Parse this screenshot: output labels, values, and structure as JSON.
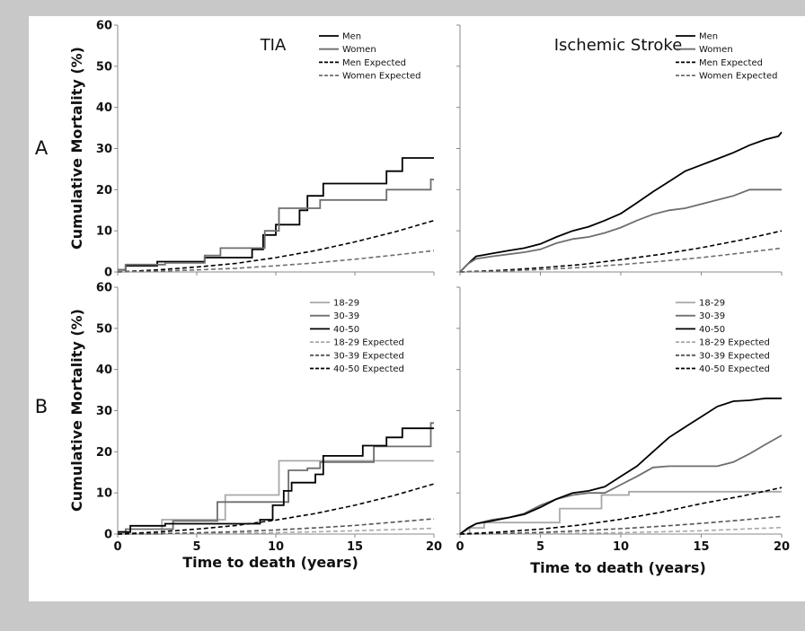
{
  "figure": {
    "background": "#c8c8c8",
    "ylabel": "Cumulative Mortality (%)",
    "xlabel": "Time to death (years)",
    "row_labels": [
      "A",
      "B"
    ],
    "column_titles": [
      "TIA",
      "Ischemic Stroke"
    ]
  },
  "chart_data": [
    {
      "type": "line",
      "row": "A",
      "title": "TIA",
      "xlabel": "",
      "ylabel": "Cumulative Mortality (%)",
      "xlim": [
        0,
        20
      ],
      "ylim": [
        0,
        60
      ],
      "xticks": [
        0,
        5,
        10,
        15,
        20
      ],
      "yticks": [
        0,
        10,
        20,
        30,
        40,
        50,
        60
      ],
      "legend_position": "top-right",
      "series": [
        {
          "name": "Men",
          "color": "#000000",
          "dash": "solid",
          "step": true,
          "x": [
            0,
            0.5,
            2.5,
            5.5,
            8.5,
            9.2,
            10.0,
            11.5,
            12.0,
            13.0,
            13.5,
            17.0,
            18.0,
            20.0
          ],
          "y": [
            0.5,
            1.5,
            2.5,
            3.5,
            5.5,
            9.0,
            11.5,
            15.0,
            18.5,
            21.5,
            21.5,
            24.5,
            27.7,
            27.7
          ]
        },
        {
          "name": "Women",
          "color": "#6e6e6e",
          "dash": "solid",
          "step": true,
          "x": [
            0,
            0.5,
            3.0,
            5.5,
            6.5,
            9.3,
            10.2,
            11.8,
            12.8,
            13.6,
            17.0,
            19.8,
            20.0
          ],
          "y": [
            0.5,
            1.8,
            2.2,
            4.0,
            5.8,
            10.0,
            15.5,
            15.5,
            17.5,
            17.5,
            20.0,
            22.5,
            22.5
          ]
        },
        {
          "name": "Men Expected",
          "color": "#000000",
          "dash": "dashed",
          "step": false,
          "x": [
            0,
            2.5,
            5,
            7.5,
            10,
            12.5,
            15,
            17.5,
            20
          ],
          "y": [
            0,
            0.5,
            1.2,
            2.1,
            3.5,
            5.2,
            7.3,
            9.7,
            12.5
          ]
        },
        {
          "name": "Women Expected",
          "color": "#6e6e6e",
          "dash": "dashed",
          "step": false,
          "x": [
            0,
            2.5,
            5,
            7.5,
            10,
            12.5,
            15,
            17.5,
            20
          ],
          "y": [
            0,
            0.2,
            0.5,
            0.9,
            1.5,
            2.2,
            3.1,
            4.1,
            5.2
          ]
        }
      ]
    },
    {
      "type": "line",
      "row": "A",
      "title": "Ischemic Stroke",
      "xlabel": "",
      "ylabel": "",
      "xlim": [
        0,
        20
      ],
      "ylim": [
        0,
        60
      ],
      "xticks": [
        0,
        5,
        10,
        15,
        20
      ],
      "yticks": [
        0,
        10,
        20,
        30,
        40,
        50,
        60
      ],
      "legend_position": "top-right",
      "series": [
        {
          "name": "Men",
          "color": "#000000",
          "dash": "solid",
          "step": false,
          "x": [
            0,
            0.5,
            1,
            2,
            3,
            4,
            5,
            6,
            7,
            8,
            9,
            10,
            11,
            12,
            13,
            14,
            15,
            16,
            17,
            18,
            19,
            19.8,
            20
          ],
          "y": [
            0,
            2.0,
            3.8,
            4.5,
            5.2,
            5.8,
            6.8,
            8.5,
            10.0,
            11.0,
            12.5,
            14.2,
            16.8,
            19.5,
            22.0,
            24.5,
            26.0,
            27.5,
            29.0,
            30.8,
            32.2,
            33.0,
            34.0
          ]
        },
        {
          "name": "Women",
          "color": "#6e6e6e",
          "dash": "solid",
          "step": false,
          "x": [
            0,
            0.5,
            1,
            2,
            3,
            4,
            5,
            6,
            7,
            8,
            9,
            10,
            11,
            12,
            13,
            14,
            15,
            16,
            17,
            18,
            19,
            20
          ],
          "y": [
            0,
            2.0,
            3.2,
            3.8,
            4.3,
            4.8,
            5.5,
            7.0,
            8.0,
            8.5,
            9.5,
            10.8,
            12.5,
            14.0,
            15.0,
            15.5,
            16.5,
            17.5,
            18.5,
            20.0,
            20.0,
            20.0
          ]
        },
        {
          "name": "Men Expected",
          "color": "#000000",
          "dash": "dashed",
          "step": false,
          "x": [
            0,
            2.5,
            5,
            7.5,
            10,
            12.5,
            15,
            17.5,
            20
          ],
          "y": [
            0,
            0.4,
            1.0,
            1.8,
            3.0,
            4.3,
            5.9,
            7.8,
            10.0
          ]
        },
        {
          "name": "Women Expected",
          "color": "#6e6e6e",
          "dash": "dashed",
          "step": false,
          "x": [
            0,
            2.5,
            5,
            7.5,
            10,
            12.5,
            15,
            17.5,
            20
          ],
          "y": [
            0,
            0.2,
            0.6,
            1.1,
            1.8,
            2.6,
            3.5,
            4.6,
            5.8
          ]
        }
      ]
    },
    {
      "type": "line",
      "row": "B",
      "title": "",
      "xlabel": "Time to death (years)",
      "ylabel": "Cumulative Mortality (%)",
      "xlim": [
        0,
        20
      ],
      "ylim": [
        0,
        60
      ],
      "xticks": [
        0,
        5,
        10,
        15,
        20
      ],
      "yticks": [
        0,
        10,
        20,
        30,
        40,
        50,
        60
      ],
      "legend_position": "top-right",
      "series": [
        {
          "name": "18-29",
          "color": "#a8a8a8",
          "dash": "solid",
          "step": true,
          "x": [
            0,
            2.8,
            6.8,
            10.2,
            20.0
          ],
          "y": [
            0,
            3.5,
            9.5,
            17.8,
            17.8
          ]
        },
        {
          "name": "30-39",
          "color": "#6e6e6e",
          "dash": "solid",
          "step": true,
          "x": [
            0,
            0.5,
            3.5,
            6.3,
            9.5,
            10.8,
            12.0,
            12.8,
            14.0,
            16.2,
            19.8,
            20.0
          ],
          "y": [
            0.5,
            1.2,
            3.2,
            7.8,
            7.8,
            15.5,
            16.0,
            17.5,
            17.5,
            21.3,
            27.0,
            27.0
          ]
        },
        {
          "name": "40-50",
          "color": "#000000",
          "dash": "solid",
          "step": true,
          "x": [
            0,
            0.8,
            3.0,
            9.0,
            9.8,
            10.5,
            11.0,
            12.5,
            13.0,
            15.5,
            17.0,
            18.0,
            20.0
          ],
          "y": [
            0.5,
            2.0,
            2.5,
            3.5,
            7.0,
            10.5,
            12.5,
            14.5,
            19.0,
            21.5,
            23.5,
            25.7,
            25.7
          ]
        },
        {
          "name": "18-29 Expected",
          "color": "#a8a8a8",
          "dash": "dashed",
          "step": false,
          "x": [
            0,
            2.5,
            5,
            7.5,
            10,
            12.5,
            15,
            17.5,
            20
          ],
          "y": [
            0,
            0.05,
            0.1,
            0.2,
            0.35,
            0.55,
            0.8,
            1.1,
            1.4
          ]
        },
        {
          "name": "30-39 Expected",
          "color": "#555555",
          "dash": "dashed",
          "step": false,
          "x": [
            0,
            2.5,
            5,
            7.5,
            10,
            12.5,
            15,
            17.5,
            20
          ],
          "y": [
            0,
            0.1,
            0.3,
            0.6,
            1.0,
            1.5,
            2.1,
            2.9,
            3.7
          ]
        },
        {
          "name": "40-50 Expected",
          "color": "#000000",
          "dash": "dashed",
          "step": false,
          "x": [
            0,
            2.5,
            5,
            7.5,
            10,
            12.5,
            15,
            17.5,
            20
          ],
          "y": [
            0,
            0.5,
            1.2,
            2.1,
            3.4,
            5.0,
            7.0,
            9.4,
            12.2
          ]
        }
      ]
    },
    {
      "type": "line",
      "row": "B",
      "title": "",
      "xlabel": "Time to death (years)",
      "ylabel": "",
      "xlim": [
        0,
        20
      ],
      "ylim": [
        0,
        60
      ],
      "xticks": [
        0,
        5,
        10,
        15,
        20
      ],
      "yticks": [
        0,
        10,
        20,
        30,
        40,
        50,
        60
      ],
      "legend_position": "top-right",
      "series": [
        {
          "name": "18-29",
          "color": "#a8a8a8",
          "dash": "solid",
          "step": true,
          "x": [
            0,
            0.6,
            1.5,
            4.5,
            6.2,
            8.0,
            8.8,
            9.8,
            10.5,
            20.0
          ],
          "y": [
            0,
            1.5,
            2.8,
            2.8,
            6.2,
            6.2,
            9.5,
            9.5,
            10.3,
            10.3
          ]
        },
        {
          "name": "30-39",
          "color": "#6e6e6e",
          "dash": "solid",
          "step": false,
          "x": [
            0,
            1,
            2,
            3,
            4,
            5,
            6,
            7,
            8,
            9,
            10,
            11,
            12,
            13,
            14,
            15,
            16,
            17,
            18,
            19,
            20
          ],
          "y": [
            0,
            2.5,
            3.5,
            4.0,
            5.0,
            7.0,
            8.5,
            9.5,
            10.0,
            10.0,
            12.0,
            14.0,
            16.2,
            16.5,
            16.5,
            16.5,
            16.5,
            17.5,
            19.5,
            21.8,
            24.0
          ]
        },
        {
          "name": "40-50",
          "color": "#000000",
          "dash": "solid",
          "step": false,
          "x": [
            0,
            0.5,
            1,
            2,
            3,
            4,
            5,
            6,
            7,
            8,
            9,
            10,
            11,
            12,
            13,
            14,
            15,
            16,
            17,
            18,
            19,
            20
          ],
          "y": [
            0,
            1.5,
            2.5,
            3.2,
            4.0,
            4.8,
            6.5,
            8.5,
            10.0,
            10.5,
            11.5,
            14.0,
            16.5,
            20.0,
            23.5,
            26.0,
            28.5,
            31.0,
            32.3,
            32.5,
            33.0,
            33.0
          ]
        },
        {
          "name": "18-29 Expected",
          "color": "#a8a8a8",
          "dash": "dashed",
          "step": false,
          "x": [
            0,
            2.5,
            5,
            7.5,
            10,
            12.5,
            15,
            17.5,
            20
          ],
          "y": [
            0,
            0.05,
            0.1,
            0.2,
            0.35,
            0.55,
            0.8,
            1.2,
            1.6
          ]
        },
        {
          "name": "30-39 Expected",
          "color": "#555555",
          "dash": "dashed",
          "step": false,
          "x": [
            0,
            2.5,
            5,
            7.5,
            10,
            12.5,
            15,
            17.5,
            20
          ],
          "y": [
            0,
            0.15,
            0.4,
            0.8,
            1.3,
            1.9,
            2.6,
            3.4,
            4.3
          ]
        },
        {
          "name": "40-50 Expected",
          "color": "#000000",
          "dash": "dashed",
          "step": false,
          "x": [
            0,
            2.5,
            5,
            7.5,
            10,
            12.5,
            15,
            17.5,
            20
          ],
          "y": [
            0,
            0.5,
            1.2,
            2.2,
            3.6,
            5.3,
            7.4,
            9.2,
            11.3
          ]
        }
      ]
    }
  ]
}
